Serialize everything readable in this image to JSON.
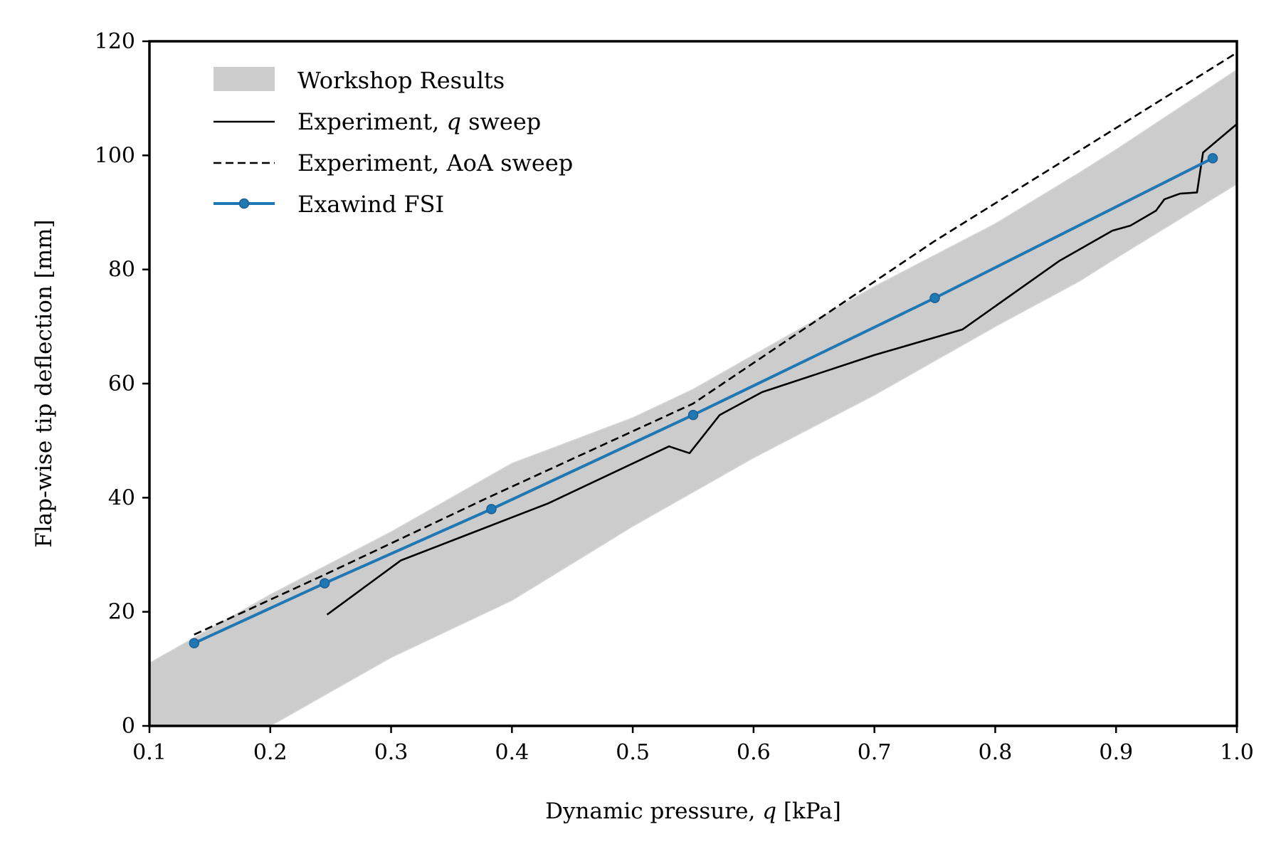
{
  "chart_data": {
    "type": "line",
    "title": "",
    "xlabel": {
      "prefix": "Dynamic pressure, ",
      "var": "q",
      "suffix": " [kPa]"
    },
    "ylabel": "Flap-wise tip deflection [mm]",
    "xlim": [
      0.1,
      1.0
    ],
    "ylim": [
      0,
      120
    ],
    "xticks": [
      "0.1",
      "0.2",
      "0.3",
      "0.4",
      "0.5",
      "0.6",
      "0.7",
      "0.8",
      "0.9",
      "1.0"
    ],
    "yticks": [
      "0",
      "20",
      "40",
      "60",
      "80",
      "100",
      "120"
    ],
    "grid": false,
    "legend_position": "top-left",
    "band": {
      "name": "Workshop Results",
      "color": "#cccccc",
      "x": [
        0.1,
        0.2,
        0.3,
        0.4,
        0.5,
        0.55,
        0.6,
        0.7,
        0.8,
        0.87,
        0.9,
        1.0
      ],
      "lower": [
        0,
        0,
        12,
        22,
        35,
        41,
        47,
        58,
        70,
        78,
        82,
        95
      ],
      "upper": [
        11,
        23,
        34,
        46,
        54,
        59,
        65,
        77,
        88,
        97,
        101,
        115
      ]
    },
    "series": [
      {
        "name": "Experiment, q sweep",
        "name_parts": {
          "prefix": "Experiment, ",
          "var": "q",
          "suffix": " sweep"
        },
        "color": "#000000",
        "style": "solid",
        "x": [
          0.247,
          0.308,
          0.43,
          0.53,
          0.547,
          0.572,
          0.607,
          0.7,
          0.773,
          0.853,
          0.897,
          0.912,
          0.933,
          0.94,
          0.953,
          0.967,
          0.972,
          1.0
        ],
        "y": [
          19.5,
          29,
          39,
          49,
          47.8,
          54.5,
          58.5,
          65,
          69.5,
          81.5,
          86.8,
          87.7,
          90.3,
          92.3,
          93.3,
          93.5,
          100.5,
          105.5
        ]
      },
      {
        "name": "Experiment, AoA sweep",
        "color": "#000000",
        "style": "dashed",
        "x": [
          0.137,
          0.245,
          0.38,
          0.55,
          0.75,
          1.0
        ],
        "y": [
          16,
          26.5,
          40,
          56.5,
          85,
          118
        ]
      },
      {
        "name": "Exawind FSI",
        "color": "#1f77b4",
        "style": "solid-markers",
        "x": [
          0.137,
          0.245,
          0.383,
          0.55,
          0.75,
          0.98
        ],
        "y": [
          14.5,
          25,
          38,
          54.5,
          75,
          99.5
        ]
      }
    ]
  }
}
